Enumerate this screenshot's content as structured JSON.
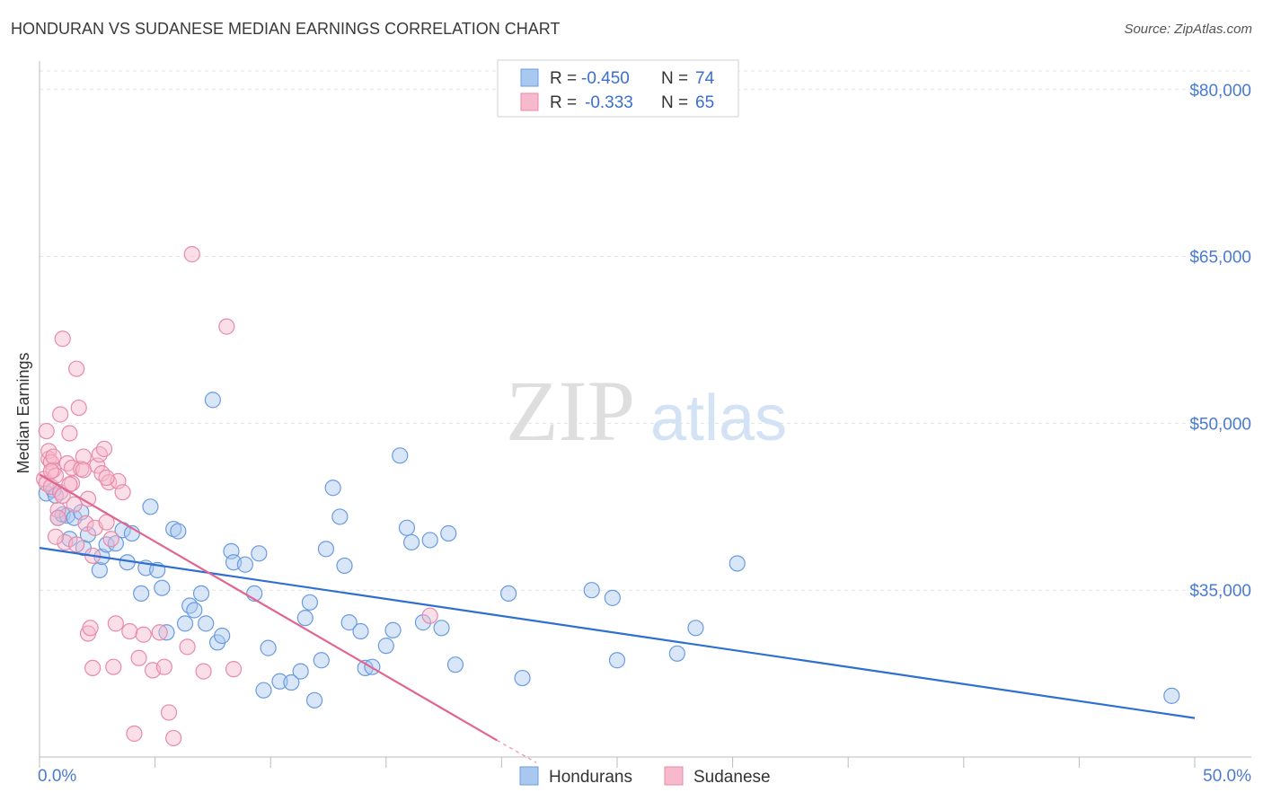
{
  "title": "HONDURAN VS SUDANESE MEDIAN EARNINGS CORRELATION CHART",
  "source": "Source: ZipAtlas.com",
  "watermark": {
    "zip": "ZIP",
    "atlas": "atlas"
  },
  "chart_data": {
    "type": "scatter",
    "ylabel": "Median Earnings",
    "xlim": [
      0,
      50
    ],
    "ylim": [
      20000,
      82000
    ],
    "x_tick_labels": {
      "left": "0.0%",
      "right": "50.0%"
    },
    "y_ticks": [
      {
        "value": 35000,
        "label": "$35,000"
      },
      {
        "value": 50000,
        "label": "$50,000"
      },
      {
        "value": 65000,
        "label": "$65,000"
      },
      {
        "value": 80000,
        "label": "$80,000"
      }
    ],
    "legend": {
      "r_label": "R =",
      "n_label": "N =",
      "entries": [
        {
          "name": "Hondurans",
          "r": "-0.450",
          "n": "74",
          "color": "#a9c8f0",
          "stroke": "#6a9be0",
          "line": "#2e6fd0"
        },
        {
          "name": "Sudanese",
          "r": "-0.333",
          "n": "65",
          "color": "#f7b9cc",
          "stroke": "#e88aa8",
          "line": "#e0668f"
        }
      ]
    },
    "series": [
      {
        "name": "Hondurans",
        "trend": {
          "x1": 0,
          "y1": 38800,
          "x2": 50,
          "y2": 23500
        },
        "points": [
          [
            0.3,
            43700
          ],
          [
            0.6,
            44000
          ],
          [
            0.7,
            43500
          ],
          [
            0.8,
            41500
          ],
          [
            1.0,
            41800
          ],
          [
            1.2,
            41700
          ],
          [
            1.3,
            39600
          ],
          [
            1.5,
            41500
          ],
          [
            1.8,
            42000
          ],
          [
            1.9,
            38800
          ],
          [
            2.1,
            40000
          ],
          [
            2.6,
            36800
          ],
          [
            2.7,
            38000
          ],
          [
            2.9,
            39100
          ],
          [
            3.3,
            39200
          ],
          [
            3.6,
            40400
          ],
          [
            3.8,
            37500
          ],
          [
            4.0,
            40100
          ],
          [
            4.4,
            34700
          ],
          [
            4.6,
            37000
          ],
          [
            4.8,
            42500
          ],
          [
            5.1,
            36800
          ],
          [
            5.3,
            35200
          ],
          [
            5.5,
            31200
          ],
          [
            5.8,
            40500
          ],
          [
            6.0,
            40300
          ],
          [
            6.3,
            32000
          ],
          [
            6.5,
            33600
          ],
          [
            6.7,
            33200
          ],
          [
            7.0,
            34700
          ],
          [
            7.2,
            32000
          ],
          [
            7.5,
            52100
          ],
          [
            7.7,
            30300
          ],
          [
            7.9,
            30900
          ],
          [
            8.3,
            38500
          ],
          [
            8.4,
            37500
          ],
          [
            8.9,
            37300
          ],
          [
            9.3,
            34700
          ],
          [
            9.5,
            38300
          ],
          [
            9.7,
            26000
          ],
          [
            9.9,
            29800
          ],
          [
            10.4,
            26800
          ],
          [
            10.9,
            26700
          ],
          [
            11.3,
            27700
          ],
          [
            11.5,
            32500
          ],
          [
            11.7,
            33900
          ],
          [
            11.9,
            25100
          ],
          [
            12.2,
            28700
          ],
          [
            12.4,
            38700
          ],
          [
            12.7,
            44200
          ],
          [
            13.0,
            41600
          ],
          [
            13.2,
            37200
          ],
          [
            13.4,
            32100
          ],
          [
            13.9,
            31300
          ],
          [
            14.1,
            28000
          ],
          [
            14.4,
            28100
          ],
          [
            15.0,
            30000
          ],
          [
            15.3,
            31400
          ],
          [
            15.6,
            47100
          ],
          [
            15.9,
            40600
          ],
          [
            16.1,
            39300
          ],
          [
            16.6,
            32100
          ],
          [
            16.9,
            39500
          ],
          [
            17.4,
            31600
          ],
          [
            17.7,
            40100
          ],
          [
            18.0,
            28300
          ],
          [
            20.3,
            34700
          ],
          [
            20.9,
            27100
          ],
          [
            23.9,
            35000
          ],
          [
            24.8,
            34300
          ],
          [
            25.0,
            28700
          ],
          [
            27.6,
            29300
          ],
          [
            28.4,
            31600
          ],
          [
            30.2,
            37400
          ],
          [
            49.0,
            25500
          ]
        ]
      },
      {
        "name": "Sudanese",
        "trend": {
          "x1": 0,
          "y1": 45400,
          "x2": 19.8,
          "y2": 21500
        },
        "trend_ext": {
          "x1": 19.8,
          "y1": 21500,
          "x2": 21.5,
          "y2": 19500
        },
        "points": [
          [
            0.2,
            45000
          ],
          [
            0.3,
            44600
          ],
          [
            0.3,
            49300
          ],
          [
            0.4,
            46800
          ],
          [
            0.4,
            47500
          ],
          [
            0.5,
            46500
          ],
          [
            0.5,
            44300
          ],
          [
            0.6,
            45800
          ],
          [
            0.6,
            47000
          ],
          [
            0.7,
            45300
          ],
          [
            0.8,
            42200
          ],
          [
            0.8,
            41500
          ],
          [
            0.9,
            43800
          ],
          [
            0.9,
            50800
          ],
          [
            1.0,
            57600
          ],
          [
            1.1,
            39300
          ],
          [
            1.2,
            46400
          ],
          [
            1.3,
            49100
          ],
          [
            1.4,
            46000
          ],
          [
            1.4,
            44600
          ],
          [
            1.5,
            42700
          ],
          [
            1.6,
            54900
          ],
          [
            1.7,
            51400
          ],
          [
            1.8,
            45900
          ],
          [
            1.9,
            47000
          ],
          [
            2.0,
            41000
          ],
          [
            2.1,
            43200
          ],
          [
            2.1,
            31100
          ],
          [
            2.2,
            31600
          ],
          [
            2.3,
            38100
          ],
          [
            2.4,
            40600
          ],
          [
            2.5,
            46200
          ],
          [
            2.6,
            47200
          ],
          [
            2.7,
            45500
          ],
          [
            2.8,
            47700
          ],
          [
            2.9,
            41100
          ],
          [
            3.0,
            44700
          ],
          [
            3.1,
            39600
          ],
          [
            3.3,
            32000
          ],
          [
            3.4,
            44800
          ],
          [
            3.6,
            43800
          ],
          [
            3.9,
            31300
          ],
          [
            4.1,
            22100
          ],
          [
            4.3,
            28900
          ],
          [
            4.5,
            31000
          ],
          [
            4.9,
            27800
          ],
          [
            5.2,
            31200
          ],
          [
            5.4,
            28100
          ],
          [
            5.6,
            24000
          ],
          [
            5.8,
            21700
          ],
          [
            6.4,
            29900
          ],
          [
            6.6,
            65200
          ],
          [
            7.1,
            27700
          ],
          [
            8.1,
            58700
          ],
          [
            8.4,
            27900
          ],
          [
            16.9,
            32700
          ],
          [
            1.0,
            43500
          ],
          [
            2.3,
            28000
          ],
          [
            3.2,
            28100
          ],
          [
            1.6,
            39100
          ],
          [
            0.7,
            39800
          ],
          [
            1.9,
            45800
          ],
          [
            2.9,
            45100
          ],
          [
            1.3,
            44500
          ],
          [
            0.5,
            45700
          ]
        ]
      }
    ]
  }
}
